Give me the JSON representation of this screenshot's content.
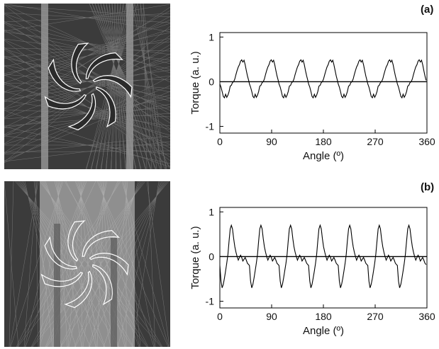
{
  "panel_labels": [
    "(a)",
    "(b)"
  ],
  "chart_data": [
    {
      "type": "line",
      "panel": "(a)",
      "xlabel": "Angle (º)",
      "ylabel": "Torque (a. u.)",
      "xlim": [
        0,
        360
      ],
      "ylim": [
        -1.15,
        1.1
      ],
      "xticks": [
        0,
        90,
        180,
        270,
        360
      ],
      "yticks": [
        1,
        0,
        -1
      ],
      "zero_line": true,
      "series": [
        {
          "period_deg": 51.43,
          "profile": [
            [
              0,
              -0.05
            ],
            [
              2,
              -0.12
            ],
            [
              4,
              -0.22
            ],
            [
              6,
              -0.33
            ],
            [
              8,
              -0.36
            ],
            [
              10,
              -0.28
            ],
            [
              12,
              -0.35
            ],
            [
              14,
              -0.3
            ],
            [
              16,
              -0.22
            ],
            [
              18,
              -0.1
            ],
            [
              20,
              -0.08
            ],
            [
              22,
              -0.02
            ],
            [
              24,
              0.0
            ],
            [
              26,
              0.06
            ],
            [
              28,
              0.16
            ],
            [
              30,
              0.25
            ],
            [
              32,
              0.33
            ],
            [
              34,
              0.38
            ],
            [
              36,
              0.46
            ],
            [
              38,
              0.49
            ],
            [
              40,
              0.44
            ],
            [
              42,
              0.48
            ],
            [
              44,
              0.38
            ],
            [
              46,
              0.25
            ],
            [
              48,
              0.13
            ],
            [
              50,
              0.03
            ],
            [
              51.43,
              -0.05
            ]
          ]
        }
      ]
    },
    {
      "type": "line",
      "panel": "(b)",
      "xlabel": "Angle (º)",
      "ylabel": "Torque (a. u.)",
      "xlim": [
        0,
        360
      ],
      "ylim": [
        -1.15,
        1.1
      ],
      "xticks": [
        0,
        90,
        180,
        270,
        360
      ],
      "yticks": [
        1,
        0,
        -1
      ],
      "zero_line": true,
      "series": [
        {
          "period_deg": 51.43,
          "profile": [
            [
              0,
              -0.2
            ],
            [
              2,
              -0.55
            ],
            [
              4,
              -0.7
            ],
            [
              6,
              -0.62
            ],
            [
              8,
              -0.48
            ],
            [
              10,
              -0.32
            ],
            [
              12,
              -0.15
            ],
            [
              14,
              0.05
            ],
            [
              16,
              0.35
            ],
            [
              18,
              0.62
            ],
            [
              20,
              0.7
            ],
            [
              22,
              0.62
            ],
            [
              24,
              0.4
            ],
            [
              26,
              0.22
            ],
            [
              28,
              0.1
            ],
            [
              30,
              0.0
            ],
            [
              32,
              -0.08
            ],
            [
              34,
              -0.02
            ],
            [
              36,
              0.03
            ],
            [
              38,
              -0.02
            ],
            [
              40,
              -0.1
            ],
            [
              42,
              -0.06
            ],
            [
              44,
              -0.02
            ],
            [
              46,
              -0.08
            ],
            [
              48,
              -0.15
            ],
            [
              50,
              -0.18
            ],
            [
              51.43,
              -0.2
            ]
          ]
        }
      ]
    }
  ]
}
